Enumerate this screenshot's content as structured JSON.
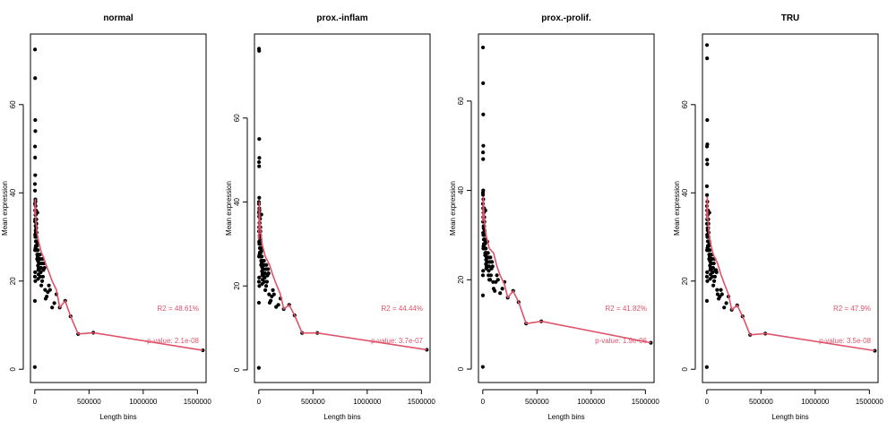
{
  "colors": {
    "points": "#000000",
    "fit_line": "#DF536B",
    "axes": "#000000",
    "annotation": "#DF536B"
  },
  "chart_data": [
    {
      "type": "scatter",
      "title": "normal",
      "xlabel": "Length bins",
      "ylabel": "Mean expression",
      "xlim": [
        -40000,
        1580000
      ],
      "ylim": [
        -3,
        76
      ],
      "xticks": [
        0,
        500000,
        1000000,
        1500000
      ],
      "yticks": [
        0,
        20,
        40,
        60
      ],
      "r2_label": "R2 = 48.61%",
      "pvalue_label": "p-value: 2.1e-08",
      "line": {
        "x": [
          0,
          5000,
          10000,
          20000,
          30000,
          45000,
          60000,
          80000,
          100000,
          130000,
          160000,
          200000,
          230000,
          280000,
          330000,
          400000,
          540000,
          1550000
        ],
        "y": [
          35,
          38.5,
          33.5,
          31,
          29.5,
          28,
          26.5,
          25.5,
          24,
          22,
          20,
          18,
          14,
          15.5,
          12,
          8,
          8.3,
          4.3
        ]
      },
      "points": {
        "x": [
          0,
          1000,
          2000,
          3000,
          4000,
          5000,
          2000,
          3000,
          4000,
          1000,
          2000,
          5000,
          1000,
          3000,
          6000,
          4000,
          2000,
          7000,
          8000,
          3000,
          5000,
          9000,
          10000,
          6000,
          11000,
          12000,
          8000,
          14000,
          15000,
          13000,
          17000,
          16000,
          18000,
          20000,
          19000,
          22000,
          24000,
          21000,
          23000,
          26000,
          28000,
          25000,
          27000,
          30000,
          29000,
          32000,
          34000,
          31000,
          33000,
          36000,
          38000,
          35000,
          40000,
          42000,
          45000,
          43000,
          48000,
          50000,
          55000,
          52000,
          60000,
          65000,
          58000,
          70000,
          75000,
          68000,
          80000,
          85000,
          90000,
          95000,
          100000,
          110000,
          120000,
          130000,
          140000,
          160000,
          180000,
          200000,
          230000,
          280000,
          330000,
          400000,
          540000,
          1550000,
          1000,
          3000,
          5000,
          2000,
          4000,
          6000,
          7000,
          9000,
          11000,
          13000
        ],
        "y": [
          0.5,
          15.5,
          72.5,
          66,
          56.5,
          54,
          50.5,
          48,
          44,
          42,
          40.5,
          38.5,
          37.5,
          36,
          35,
          34,
          33.5,
          32.5,
          31.5,
          30.5,
          30,
          29,
          28,
          27.5,
          27,
          36,
          35,
          34,
          33,
          32,
          31,
          30,
          29,
          28,
          27,
          26,
          35.5,
          25,
          29,
          28.5,
          27,
          26,
          25.5,
          24.5,
          23.5,
          22.5,
          21.5,
          20.5,
          26,
          25,
          24,
          23,
          22.5,
          25,
          24,
          23,
          26,
          25,
          22,
          21,
          19,
          24,
          23,
          25,
          21,
          20,
          22.5,
          24,
          23,
          18,
          16,
          16.5,
          17.5,
          19,
          18,
          14,
          15,
          17,
          14,
          15.5,
          12,
          8,
          8.3,
          4.3,
          21,
          22,
          20,
          27,
          34,
          38,
          37,
          31,
          29,
          28
        ]
      }
    },
    {
      "type": "scatter",
      "title": "prox.-inflam",
      "xlabel": "Length bins",
      "ylabel": "Mean expression",
      "xlim": [
        -40000,
        1580000
      ],
      "ylim": [
        -3,
        80
      ],
      "xticks": [
        0,
        500000,
        1000000,
        1500000
      ],
      "yticks": [
        0,
        20,
        40,
        60
      ],
      "r2_label": "R2 = 44.44%",
      "pvalue_label": "p-value: 3.7e-07",
      "line": {
        "x": [
          0,
          5000,
          10000,
          20000,
          30000,
          45000,
          60000,
          80000,
          100000,
          130000,
          160000,
          200000,
          230000,
          280000,
          330000,
          400000,
          540000,
          1550000
        ],
        "y": [
          31,
          40,
          35,
          32.5,
          30,
          28.5,
          27,
          26,
          25,
          22.5,
          20.5,
          18,
          14.5,
          15.5,
          13,
          8.8,
          8.8,
          4.8
        ]
      },
      "points": {
        "x": [
          0,
          1000,
          2000,
          3000,
          4000,
          5000,
          2000,
          3000,
          4000,
          1000,
          2000,
          5000,
          1000,
          3000,
          6000,
          4000,
          2000,
          7000,
          8000,
          3000,
          5000,
          9000,
          10000,
          6000,
          11000,
          12000,
          8000,
          14000,
          15000,
          13000,
          17000,
          16000,
          18000,
          20000,
          19000,
          22000,
          24000,
          21000,
          23000,
          26000,
          28000,
          25000,
          27000,
          30000,
          29000,
          32000,
          34000,
          31000,
          33000,
          36000,
          38000,
          35000,
          40000,
          42000,
          45000,
          43000,
          48000,
          50000,
          55000,
          52000,
          60000,
          65000,
          58000,
          70000,
          75000,
          68000,
          80000,
          85000,
          90000,
          95000,
          100000,
          110000,
          120000,
          130000,
          140000,
          160000,
          180000,
          200000,
          230000,
          280000,
          330000,
          400000,
          540000,
          1550000,
          1000,
          3000,
          5000,
          2000,
          4000,
          6000,
          7000,
          9000
        ],
        "y": [
          0.5,
          16,
          76.5,
          76,
          55,
          50.5,
          49.5,
          48.5,
          41,
          40,
          39.5,
          38.5,
          37.5,
          36.5,
          35,
          34,
          33,
          32,
          31.5,
          30.5,
          30,
          29,
          28,
          27.5,
          27,
          36,
          35,
          34,
          33,
          32,
          31,
          30,
          29,
          28,
          27,
          26,
          37,
          25,
          29,
          28.5,
          27,
          26,
          25.5,
          24.5,
          23.5,
          22.5,
          21.5,
          20.5,
          26,
          25,
          24,
          23,
          22.5,
          25,
          24,
          23,
          26,
          25,
          22,
          21,
          19,
          24,
          23,
          25,
          21,
          20,
          22.5,
          24,
          23,
          18,
          16,
          16.5,
          17.5,
          19,
          18,
          15,
          15.5,
          17,
          14.5,
          15.5,
          13,
          8.8,
          8.8,
          4.8,
          21,
          22,
          20,
          27,
          34,
          38,
          37,
          31
        ]
      }
    },
    {
      "type": "scatter",
      "title": "prox.-prolif.",
      "xlabel": "Length bins",
      "ylabel": "Mean expression",
      "xlim": [
        -40000,
        1580000
      ],
      "ylim": [
        -3,
        75
      ],
      "xticks": [
        0,
        500000,
        1000000,
        1500000
      ],
      "yticks": [
        0,
        20,
        40,
        60
      ],
      "r2_label": "R2 = 41.82%",
      "pvalue_label": "p-value: 1.9e-06",
      "line": {
        "x": [
          0,
          5000,
          10000,
          20000,
          30000,
          45000,
          60000,
          80000,
          100000,
          130000,
          160000,
          200000,
          230000,
          280000,
          330000,
          400000,
          540000,
          1550000
        ],
        "y": [
          33,
          38.5,
          35,
          32,
          30,
          28.5,
          27,
          26.5,
          26,
          23,
          21,
          19,
          16,
          17.5,
          15,
          10.2,
          10.7,
          5.9
        ]
      },
      "points": {
        "x": [
          0,
          1000,
          2000,
          3000,
          4000,
          5000,
          2000,
          3000,
          4000,
          1000,
          2000,
          5000,
          1000,
          3000,
          6000,
          4000,
          2000,
          7000,
          8000,
          3000,
          5000,
          9000,
          10000,
          6000,
          11000,
          12000,
          8000,
          14000,
          15000,
          13000,
          17000,
          16000,
          18000,
          20000,
          19000,
          22000,
          24000,
          21000,
          23000,
          26000,
          28000,
          25000,
          27000,
          30000,
          29000,
          32000,
          34000,
          31000,
          33000,
          36000,
          38000,
          35000,
          40000,
          42000,
          45000,
          43000,
          48000,
          50000,
          55000,
          52000,
          60000,
          65000,
          58000,
          70000,
          75000,
          68000,
          80000,
          85000,
          90000,
          95000,
          100000,
          110000,
          120000,
          130000,
          140000,
          160000,
          180000,
          200000,
          230000,
          280000,
          330000,
          400000,
          540000,
          1550000,
          1000,
          3000,
          5000
        ],
        "y": [
          0.5,
          16.5,
          72,
          64,
          57,
          50,
          48.5,
          47,
          40,
          39.5,
          39,
          38,
          37,
          36,
          35,
          34,
          33,
          32,
          31.5,
          30.5,
          30,
          29,
          28,
          27.5,
          27,
          36,
          35,
          34,
          33,
          32,
          31,
          30,
          29,
          28,
          27,
          26,
          35.5,
          25.5,
          29,
          28.5,
          27,
          26,
          25.5,
          24.5,
          23.5,
          22.5,
          25,
          26,
          26,
          25,
          24,
          23,
          23,
          28.5,
          24,
          23,
          26,
          25,
          22,
          21,
          20,
          24,
          23,
          25,
          21,
          20,
          22.5,
          24,
          23,
          19.5,
          18,
          17.5,
          19.5,
          21,
          20,
          17,
          18,
          19.5,
          16,
          17.5,
          15,
          10.2,
          10.7,
          5.9,
          21,
          22,
          27
        ]
      }
    },
    {
      "type": "scatter",
      "title": "TRU",
      "xlabel": "Length bins",
      "ylabel": "Mean expression",
      "xlim": [
        -40000,
        1580000
      ],
      "ylim": [
        -3,
        76
      ],
      "xticks": [
        0,
        500000,
        1000000,
        1500000
      ],
      "yticks": [
        0,
        20,
        40,
        60
      ],
      "r2_label": "R2 = 47.9%",
      "pvalue_label": "p-value: 3.5e-08",
      "line": {
        "x": [
          0,
          5000,
          10000,
          20000,
          30000,
          45000,
          60000,
          80000,
          100000,
          130000,
          160000,
          200000,
          230000,
          280000,
          330000,
          400000,
          540000,
          1550000
        ],
        "y": [
          34,
          39,
          34,
          31,
          29,
          27.5,
          26,
          25,
          24,
          21.5,
          19.5,
          17,
          13.5,
          14.5,
          12,
          7.8,
          8.1,
          4.2
        ]
      },
      "points": {
        "x": [
          0,
          1000,
          2000,
          3000,
          4000,
          5000,
          2000,
          3000,
          4000,
          1000,
          2000,
          5000,
          1000,
          3000,
          6000,
          4000,
          2000,
          7000,
          8000,
          3000,
          5000,
          9000,
          10000,
          6000,
          11000,
          12000,
          8000,
          14000,
          15000,
          13000,
          17000,
          16000,
          18000,
          20000,
          19000,
          22000,
          24000,
          21000,
          23000,
          26000,
          28000,
          25000,
          27000,
          30000,
          29000,
          32000,
          34000,
          31000,
          33000,
          36000,
          38000,
          35000,
          40000,
          42000,
          45000,
          43000,
          48000,
          50000,
          55000,
          52000,
          60000,
          65000,
          58000,
          70000,
          75000,
          68000,
          80000,
          85000,
          90000,
          95000,
          100000,
          110000,
          120000,
          130000,
          140000,
          160000,
          180000,
          200000,
          230000,
          280000,
          330000,
          400000,
          540000,
          1550000,
          1000,
          3000,
          5000,
          2000,
          4000
        ],
        "y": [
          0.5,
          15.5,
          73.5,
          70.5,
          56.5,
          51,
          50.5,
          47.5,
          46.5,
          41.5,
          39.5,
          38,
          37,
          36,
          35,
          34,
          33,
          32,
          31.5,
          30.5,
          30,
          29,
          28,
          27.5,
          27,
          36,
          35,
          34,
          33,
          32,
          31,
          30,
          29,
          28,
          27,
          26,
          35.5,
          25,
          29,
          28.5,
          27,
          26,
          25.5,
          24.5,
          23.5,
          22.5,
          21.5,
          20.5,
          26,
          25,
          24,
          23,
          22.5,
          25,
          24,
          23,
          26,
          25,
          22,
          21,
          19,
          24,
          23,
          25,
          21,
          20,
          22.5,
          22.5,
          22,
          18,
          17,
          16,
          16.5,
          18,
          17,
          14,
          15,
          16.5,
          13.5,
          14.5,
          12,
          7.8,
          8.1,
          4.2,
          21,
          22,
          20,
          27,
          34
        ]
      }
    }
  ]
}
